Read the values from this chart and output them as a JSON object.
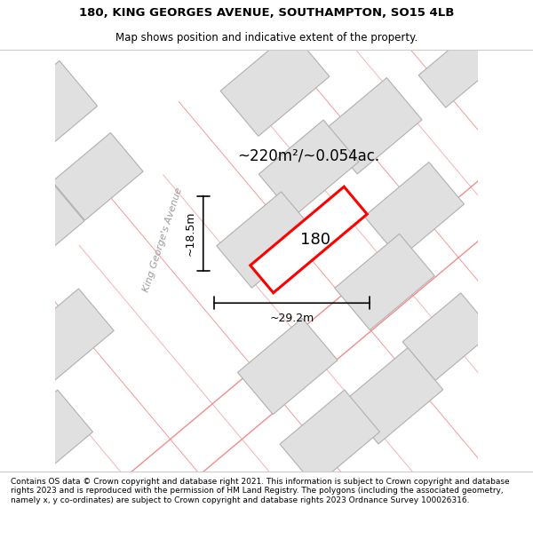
{
  "title_line1": "180, KING GEORGES AVENUE, SOUTHAMPTON, SO15 4LB",
  "title_line2": "Map shows position and indicative extent of the property.",
  "footer_text": "Contains OS data © Crown copyright and database right 2021. This information is subject to Crown copyright and database rights 2023 and is reproduced with the permission of HM Land Registry. The polygons (including the associated geometry, namely x, y co-ordinates) are subject to Crown copyright and database rights 2023 Ordnance Survey 100026316.",
  "area_label": "~220m²/~0.054ac.",
  "width_label": "~29.2m",
  "height_label": "~18.5m",
  "property_number": "180",
  "map_bg": "#ffffff",
  "building_fill": "#e0e0e0",
  "building_edge": "#b0b0b0",
  "road_line_color": "#f08080",
  "property_color": "#ff0000",
  "street_label": "King George's Avenue",
  "road_deg": 40,
  "map_xlim": [
    0,
    10
  ],
  "map_ylim": [
    0,
    10
  ],
  "title_fontsize": 9.5,
  "subtitle_fontsize": 8.5,
  "footer_fontsize": 6.5,
  "area_fontsize": 12,
  "dim_fontsize": 9,
  "prop_num_fontsize": 13,
  "street_fontsize": 8
}
